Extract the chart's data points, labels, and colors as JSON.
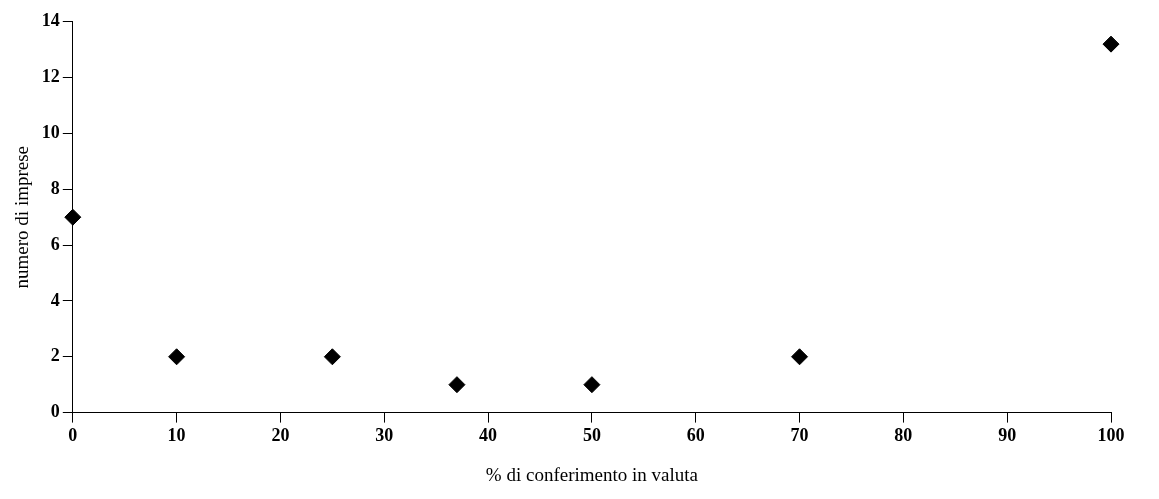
{
  "chart_data": {
    "type": "scatter",
    "xlabel": "% di conferimento in valuta",
    "ylabel": "numero di imprese",
    "x": [
      0,
      10,
      25,
      37,
      50,
      70,
      100
    ],
    "values": [
      7,
      2,
      2,
      1,
      1,
      2,
      13.2
    ],
    "color": "#000000",
    "marker": "diamond",
    "xlim": [
      0,
      100
    ],
    "xticks": [
      0,
      10,
      20,
      30,
      40,
      50,
      60,
      70,
      80,
      90,
      100
    ],
    "ylim": [
      0,
      14
    ],
    "yticks": [
      0,
      2,
      4,
      6,
      8,
      10,
      12,
      14
    ],
    "grid": false,
    "legend": false
  }
}
